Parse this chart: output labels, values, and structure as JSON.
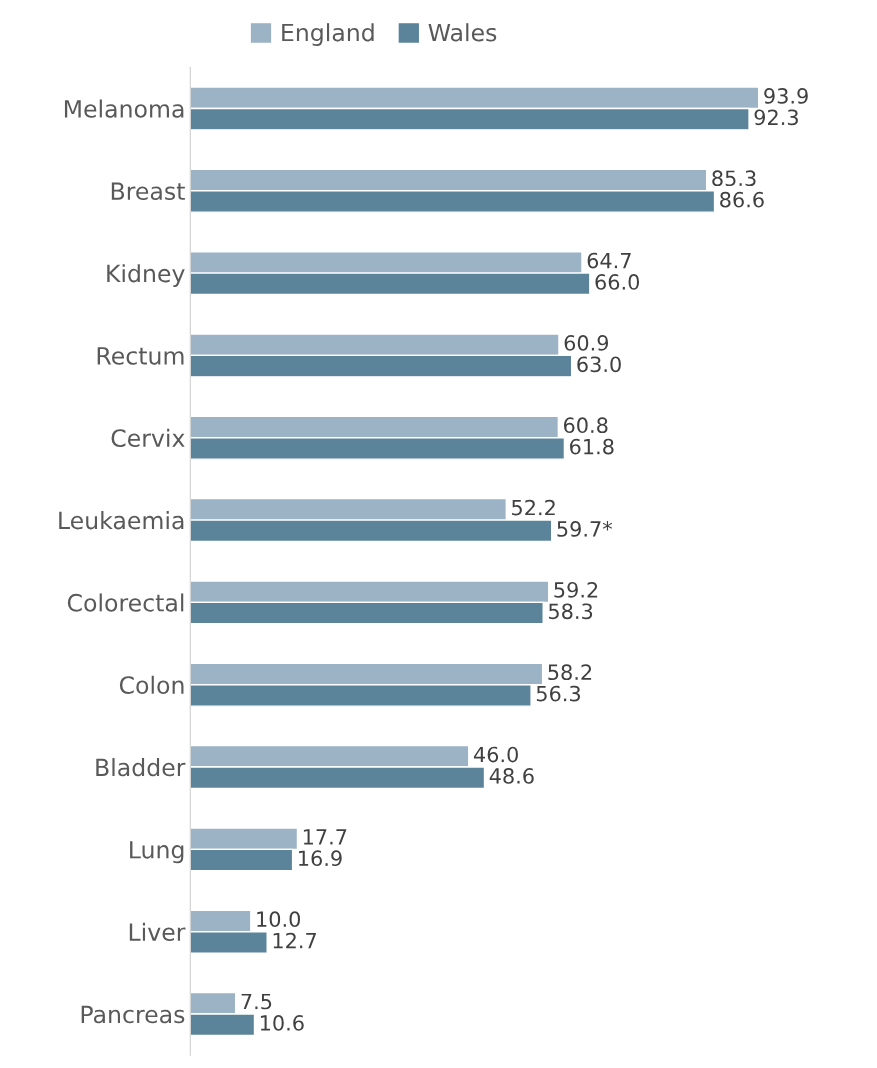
{
  "chart_data": {
    "type": "bar",
    "orientation": "horizontal",
    "categories": [
      "Melanoma",
      "Breast",
      "Kidney",
      "Rectum",
      "Cervix",
      "Leukaemia",
      "Colorectal",
      "Colon",
      "Bladder",
      "Lung",
      "Liver",
      "Pancreas"
    ],
    "series": [
      {
        "name": "England",
        "color": "#9bb3c4",
        "values": [
          93.9,
          85.3,
          64.7,
          60.9,
          60.8,
          52.2,
          59.2,
          58.2,
          46.0,
          17.7,
          10.0,
          7.5
        ],
        "value_labels": [
          "93.9",
          "85.3",
          "64.7",
          "60.9",
          "60.8",
          "52.2",
          "59.2",
          "58.2",
          "46.0",
          "17.7",
          "10.0",
          "7.5"
        ]
      },
      {
        "name": "Wales",
        "color": "#5b849b",
        "values": [
          92.3,
          86.6,
          66.0,
          63.0,
          61.8,
          59.7,
          58.3,
          56.3,
          48.6,
          16.9,
          12.7,
          10.6
        ],
        "value_labels": [
          "92.3",
          "86.6",
          "66.0",
          "63.0",
          "61.8",
          "59.7*",
          "58.3",
          "56.3",
          "48.6",
          "16.9",
          "12.7",
          "10.6"
        ]
      }
    ],
    "legend": "top",
    "grid": false,
    "tick_labels": "y"
  }
}
